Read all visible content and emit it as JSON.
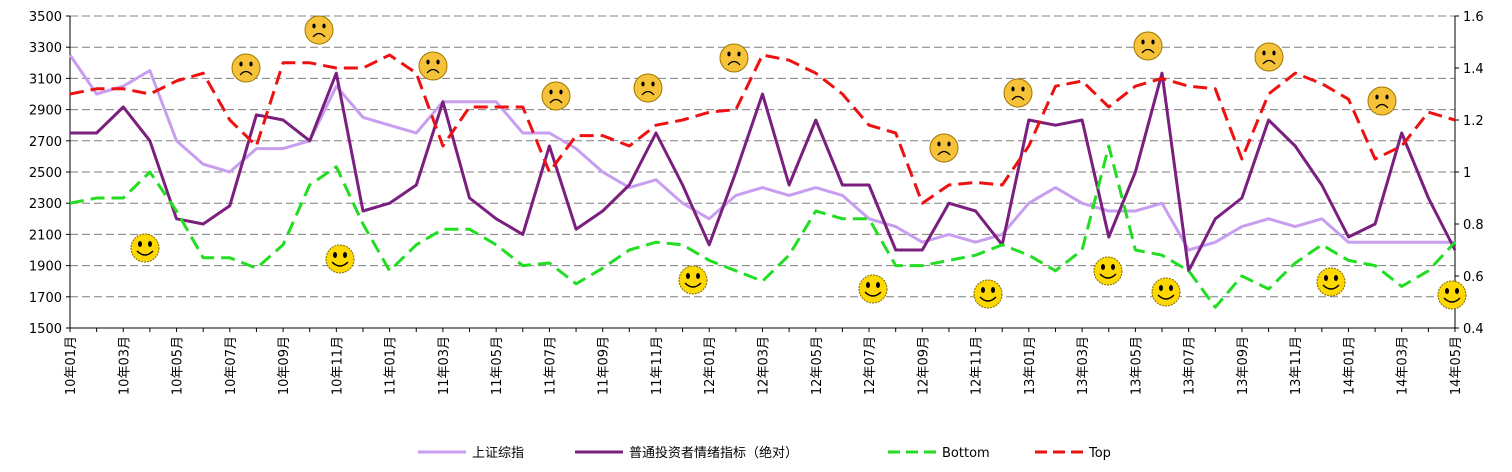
{
  "chart_data": {
    "type": "line",
    "categories": [
      "10年01月",
      null,
      "10年03月",
      null,
      "10年05月",
      null,
      "10年07月",
      null,
      "10年09月",
      null,
      "10年11月",
      null,
      "11年01月",
      null,
      "11年03月",
      null,
      "11年05月",
      null,
      "11年07月",
      null,
      "11年09月",
      null,
      "11年11月",
      null,
      "12年01月",
      null,
      "12年03月",
      null,
      "12年05月",
      null,
      "12年07月",
      null,
      "12年09月",
      null,
      "12年11月",
      null,
      "13年01月",
      null,
      "13年03月",
      null,
      "13年05月",
      null,
      "13年07月",
      null,
      "13年09月",
      null,
      "13年11月",
      null,
      "14年01月",
      null,
      "14年03月",
      null,
      "14年05月"
    ],
    "ylim": [
      1500,
      3500
    ],
    "yticks": [
      1500,
      1700,
      1900,
      2100,
      2300,
      2500,
      2700,
      2900,
      3100,
      3300,
      3500
    ],
    "y2lim": [
      0.4,
      1.6
    ],
    "y2ticks": [
      0.4,
      0.6,
      0.8,
      1,
      1.2,
      1.4,
      1.6
    ],
    "grid": true,
    "legend": "bottom",
    "series": [
      {
        "name": "上证综指",
        "color": "#c89ef0",
        "line_style": "solid",
        "axis": "y",
        "values": [
          3250,
          3000,
          3050,
          3150,
          2700,
          2550,
          2500,
          2650,
          2650,
          2700,
          3050,
          2850,
          2800,
          2750,
          2950,
          2950,
          2950,
          2750,
          2750,
          2650,
          2500,
          2400,
          2450,
          2300,
          2200,
          2350,
          2400,
          2350,
          2400,
          2350,
          2200,
          2150,
          2050,
          2100,
          2050,
          2100,
          2300,
          2400,
          2300,
          2250,
          2250,
          2300,
          2000,
          2050,
          2150,
          2200,
          2150,
          2200,
          2050,
          2050,
          2050,
          2050,
          2050
        ]
      },
      {
        "name": "普通投资者情绪指标（绝对）",
        "color": "#7b1f7f",
        "line_style": "solid",
        "axis": "y2",
        "values": [
          1.15,
          1.15,
          1.25,
          1.12,
          0.82,
          0.8,
          0.87,
          1.22,
          1.2,
          1.12,
          1.38,
          0.85,
          0.88,
          0.95,
          1.27,
          0.9,
          0.82,
          0.76,
          1.1,
          0.78,
          0.85,
          0.95,
          1.15,
          0.95,
          0.72,
          1.0,
          1.3,
          0.95,
          1.2,
          0.95,
          0.95,
          0.7,
          0.7,
          0.88,
          0.85,
          0.72,
          1.2,
          1.18,
          1.2,
          0.75,
          1.0,
          1.38,
          0.62,
          0.82,
          0.9,
          1.2,
          1.1,
          0.95,
          0.75,
          0.8,
          1.15,
          0.9,
          0.7
        ]
      },
      {
        "name": "Bottom",
        "color": "#22dd22",
        "line_style": "dashed",
        "axis": "y2",
        "values": [
          0.88,
          0.9,
          0.9,
          1.0,
          0.85,
          0.67,
          0.67,
          0.63,
          0.72,
          0.95,
          1.02,
          0.8,
          0.62,
          0.72,
          0.78,
          0.78,
          0.72,
          0.64,
          0.65,
          0.57,
          0.63,
          0.7,
          0.73,
          0.72,
          0.66,
          0.62,
          0.58,
          0.68,
          0.85,
          0.82,
          0.82,
          0.64,
          0.64,
          0.66,
          0.68,
          0.72,
          0.68,
          0.62,
          0.7,
          1.1,
          0.7,
          0.68,
          0.62,
          0.48,
          0.6,
          0.55,
          0.65,
          0.72,
          0.66,
          0.64,
          0.56,
          0.62,
          0.73
        ]
      },
      {
        "name": "Top",
        "color": "#ee1111",
        "line_style": "dashed",
        "axis": "y2",
        "values": [
          1.3,
          1.32,
          1.32,
          1.3,
          1.35,
          1.38,
          1.2,
          1.1,
          1.42,
          1.42,
          1.4,
          1.4,
          1.45,
          1.38,
          1.1,
          1.25,
          1.25,
          1.25,
          1.0,
          1.14,
          1.14,
          1.1,
          1.18,
          1.2,
          1.23,
          1.24,
          1.45,
          1.43,
          1.38,
          1.3,
          1.18,
          1.15,
          0.88,
          0.95,
          0.96,
          0.95,
          1.1,
          1.33,
          1.35,
          1.25,
          1.33,
          1.36,
          1.33,
          1.32,
          1.05,
          1.3,
          1.38,
          1.34,
          1.28,
          1.05,
          1.1,
          1.23,
          1.2
        ]
      }
    ]
  }
}
